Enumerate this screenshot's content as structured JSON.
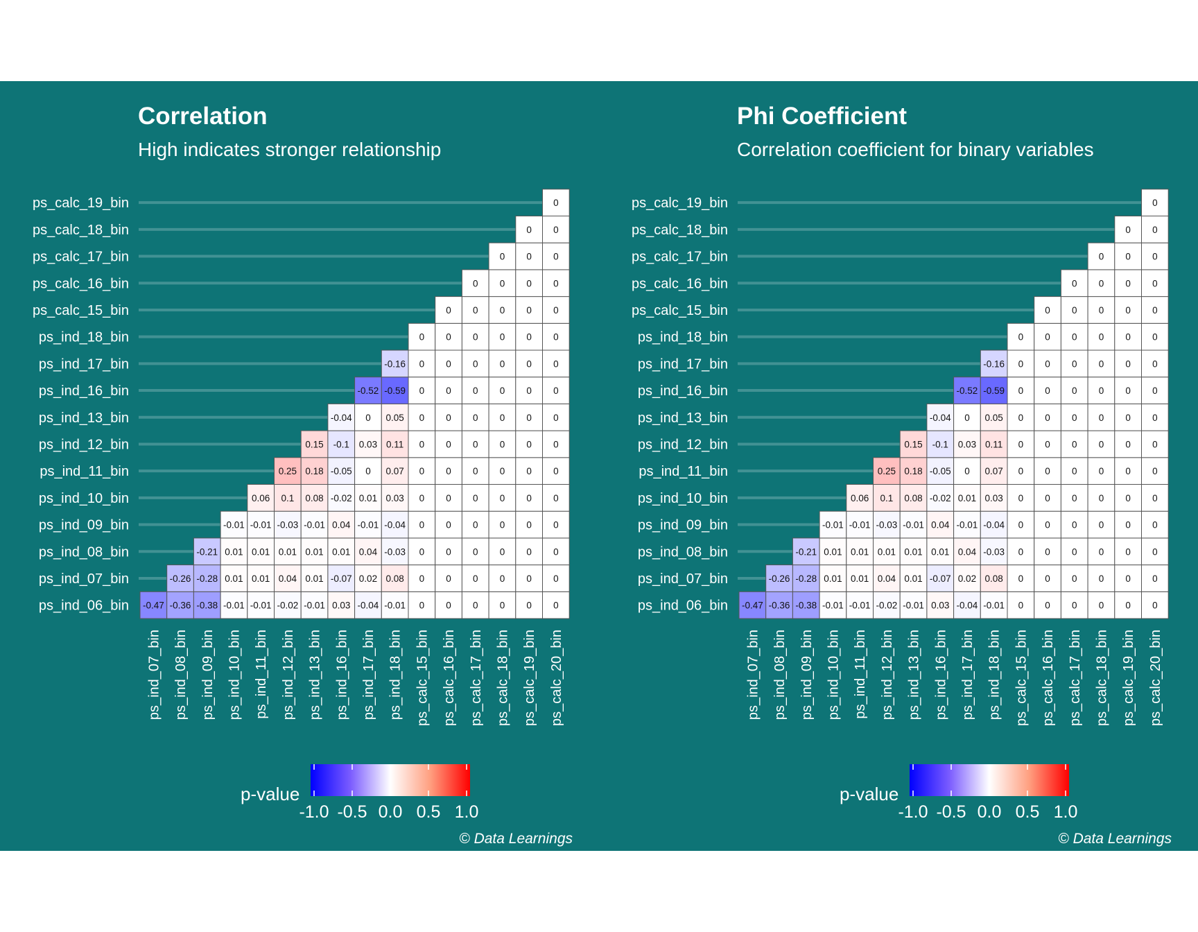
{
  "chart_data": [
    {
      "type": "heatmap",
      "title": "Correlation",
      "subtitle": "High indicates stronger relationship",
      "caption": "© Data Learnings",
      "legend": {
        "title": "p-value",
        "ticks": [
          "-1.0",
          "-0.5",
          "0.0",
          "0.5",
          "1.0"
        ],
        "range": [
          -1,
          1
        ],
        "placement": "bottom"
      },
      "rows": [
        "ps_ind_06_bin",
        "ps_ind_07_bin",
        "ps_ind_08_bin",
        "ps_ind_09_bin",
        "ps_ind_10_bin",
        "ps_ind_11_bin",
        "ps_ind_12_bin",
        "ps_ind_13_bin",
        "ps_ind_16_bin",
        "ps_ind_17_bin",
        "ps_ind_18_bin",
        "ps_calc_15_bin",
        "ps_calc_16_bin",
        "ps_calc_17_bin",
        "ps_calc_18_bin",
        "ps_calc_19_bin"
      ],
      "columns": [
        "ps_ind_07_bin",
        "ps_ind_08_bin",
        "ps_ind_09_bin",
        "ps_ind_10_bin",
        "ps_ind_11_bin",
        "ps_ind_12_bin",
        "ps_ind_13_bin",
        "ps_ind_16_bin",
        "ps_ind_17_bin",
        "ps_ind_18_bin",
        "ps_calc_15_bin",
        "ps_calc_16_bin",
        "ps_calc_17_bin",
        "ps_calc_18_bin",
        "ps_calc_19_bin",
        "ps_calc_20_bin"
      ],
      "values": [
        [
          -0.47,
          -0.36,
          -0.38,
          -0.01,
          -0.01,
          -0.02,
          -0.01,
          0.03,
          -0.04,
          -0.01,
          0,
          0,
          0,
          0,
          0,
          0
        ],
        [
          -0.26,
          -0.28,
          0.01,
          0.01,
          0.04,
          0.01,
          -0.07,
          0.02,
          0.08,
          0,
          0,
          0,
          0,
          0,
          0
        ],
        [
          -0.21,
          0.01,
          0.01,
          0.01,
          0.01,
          0.01,
          0.04,
          -0.03,
          0,
          0,
          0,
          0,
          0,
          0
        ],
        [
          -0.01,
          -0.01,
          -0.03,
          -0.01,
          0.04,
          -0.01,
          -0.04,
          0,
          0,
          0,
          0,
          0,
          0
        ],
        [
          0.06,
          0.1,
          0.08,
          -0.02,
          0.01,
          0.03,
          0,
          0,
          0,
          0,
          0,
          0
        ],
        [
          0.25,
          0.18,
          -0.05,
          0,
          0.07,
          0,
          0,
          0,
          0,
          0,
          0
        ],
        [
          0.15,
          -0.1,
          0.03,
          0.11,
          0,
          0,
          0,
          0,
          0,
          0
        ],
        [
          -0.04,
          0,
          0.05,
          0,
          0,
          0,
          0,
          0,
          0
        ],
        [
          -0.52,
          -0.59,
          0,
          0,
          0,
          0,
          0,
          0
        ],
        [
          -0.16,
          0,
          0,
          0,
          0,
          0,
          0
        ],
        [
          0,
          0,
          0,
          0,
          0,
          0
        ],
        [
          0,
          0,
          0,
          0,
          0
        ],
        [
          0,
          0,
          0,
          0
        ],
        [
          0,
          0,
          0
        ],
        [
          0,
          0
        ],
        [
          0
        ]
      ]
    },
    {
      "type": "heatmap",
      "title": "Phi Coefficient",
      "subtitle": "Correlation coefficient for binary variables",
      "caption": "© Data Learnings",
      "legend": {
        "title": "p-value",
        "ticks": [
          "-1.0",
          "-0.5",
          "0.0",
          "0.5",
          "1.0"
        ],
        "range": [
          -1,
          1
        ],
        "placement": "bottom"
      },
      "rows": [
        "ps_ind_06_bin",
        "ps_ind_07_bin",
        "ps_ind_08_bin",
        "ps_ind_09_bin",
        "ps_ind_10_bin",
        "ps_ind_11_bin",
        "ps_ind_12_bin",
        "ps_ind_13_bin",
        "ps_ind_16_bin",
        "ps_ind_17_bin",
        "ps_ind_18_bin",
        "ps_calc_15_bin",
        "ps_calc_16_bin",
        "ps_calc_17_bin",
        "ps_calc_18_bin",
        "ps_calc_19_bin"
      ],
      "columns": [
        "ps_ind_07_bin",
        "ps_ind_08_bin",
        "ps_ind_09_bin",
        "ps_ind_10_bin",
        "ps_ind_11_bin",
        "ps_ind_12_bin",
        "ps_ind_13_bin",
        "ps_ind_16_bin",
        "ps_ind_17_bin",
        "ps_ind_18_bin",
        "ps_calc_15_bin",
        "ps_calc_16_bin",
        "ps_calc_17_bin",
        "ps_calc_18_bin",
        "ps_calc_19_bin",
        "ps_calc_20_bin"
      ],
      "values": [
        [
          -0.47,
          -0.36,
          -0.38,
          -0.01,
          -0.01,
          -0.02,
          -0.01,
          0.03,
          -0.04,
          -0.01,
          0,
          0,
          0,
          0,
          0,
          0
        ],
        [
          -0.26,
          -0.28,
          0.01,
          0.01,
          0.04,
          0.01,
          -0.07,
          0.02,
          0.08,
          0,
          0,
          0,
          0,
          0,
          0
        ],
        [
          -0.21,
          0.01,
          0.01,
          0.01,
          0.01,
          0.01,
          0.04,
          -0.03,
          0,
          0,
          0,
          0,
          0,
          0
        ],
        [
          -0.01,
          -0.01,
          -0.03,
          -0.01,
          0.04,
          -0.01,
          -0.04,
          0,
          0,
          0,
          0,
          0,
          0
        ],
        [
          0.06,
          0.1,
          0.08,
          -0.02,
          0.01,
          0.03,
          0,
          0,
          0,
          0,
          0,
          0
        ],
        [
          0.25,
          0.18,
          -0.05,
          0,
          0.07,
          0,
          0,
          0,
          0,
          0,
          0
        ],
        [
          0.15,
          -0.1,
          0.03,
          0.11,
          0,
          0,
          0,
          0,
          0,
          0
        ],
        [
          -0.04,
          0,
          0.05,
          0,
          0,
          0,
          0,
          0,
          0
        ],
        [
          -0.52,
          -0.59,
          0,
          0,
          0,
          0,
          0,
          0
        ],
        [
          -0.16,
          0,
          0,
          0,
          0,
          0,
          0
        ],
        [
          0,
          0,
          0,
          0,
          0,
          0
        ],
        [
          0,
          0,
          0,
          0,
          0
        ],
        [
          0,
          0,
          0,
          0
        ],
        [
          0,
          0,
          0
        ],
        [
          0,
          0
        ],
        [
          0
        ]
      ]
    }
  ],
  "colors": {
    "background": "#0e7476",
    "negative": "#0000ff",
    "neutral": "#ffffff",
    "positive": "#ff0000",
    "text": "#ffffff"
  }
}
